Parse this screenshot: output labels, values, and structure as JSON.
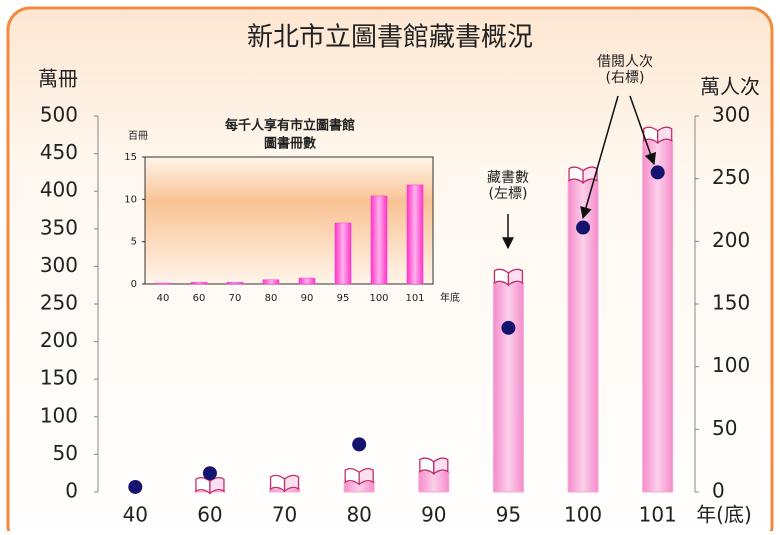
{
  "chart_data": [
    {
      "type": "bar",
      "title": "新北市立圖書館藏書概況",
      "categories": [
        "40",
        "60",
        "70",
        "80",
        "90",
        "95",
        "100",
        "101"
      ],
      "series": [
        {
          "type": "bar",
          "color": "#f7a8d8",
          "values": [
            0,
            1,
            4,
            13,
            27,
            278,
            414,
            467
          ]
        },
        {
          "type": "scatter",
          "axis": "y2",
          "color": "#14146e",
          "values": [
            4,
            15,
            null,
            38,
            null,
            131,
            211,
            255
          ]
        }
      ],
      "ylim": [
        0,
        500
      ],
      "yticks": [
        0,
        50,
        100,
        150,
        200,
        250,
        300,
        350,
        400,
        450,
        500
      ],
      "y2lim": [
        0,
        300
      ],
      "y2ticks": [
        0,
        50,
        100,
        150,
        200,
        250,
        300
      ],
      "ylabel": "萬冊",
      "y2label": "萬人次",
      "xlabel": "年(底)",
      "annotations": [
        {
          "text": [
            "藏書數",
            "(左標)"
          ]
        },
        {
          "text": [
            "借閱人次",
            "(右標)"
          ]
        }
      ]
    },
    {
      "type": "bar",
      "title": [
        "每千人享有市立圖書館",
        "圖書冊數"
      ],
      "categories": [
        "40",
        "60",
        "70",
        "80",
        "90",
        "95",
        "100",
        "101"
      ],
      "values": [
        0.1,
        0.2,
        0.2,
        0.5,
        0.7,
        7.2,
        10.4,
        11.7
      ],
      "color": "#ff33cc",
      "ylim": [
        0,
        15
      ],
      "yticks": [
        0,
        5,
        10,
        15
      ],
      "ylabel": "百冊",
      "xlabel": "年底"
    }
  ]
}
